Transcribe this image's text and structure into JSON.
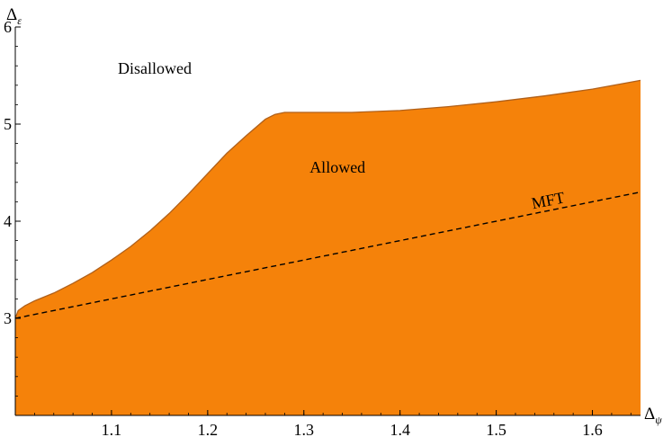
{
  "chart_data": {
    "type": "area",
    "title": "",
    "xlabel": "Δψ",
    "ylabel": "Δε",
    "xlabel_main": "Δ",
    "xlabel_sub": "ψ",
    "ylabel_main": "Δ",
    "ylabel_sub": "ε",
    "xlim": [
      1.0,
      1.65
    ],
    "ylim": [
      2.0,
      6.0
    ],
    "x_ticks": [
      1.1,
      1.2,
      1.3,
      1.4,
      1.5,
      1.6
    ],
    "x_tick_labels": [
      "1.1",
      "1.2",
      "1.3",
      "1.4",
      "1.5",
      "1.6"
    ],
    "y_ticks": [
      3,
      4,
      5,
      6
    ],
    "y_tick_labels": [
      "3",
      "4",
      "5",
      "6"
    ],
    "grid": false,
    "fill_color": "#F5820A",
    "edge_color": "#B0601A",
    "series": [
      {
        "kind": "boundary",
        "x": [
          1.0,
          1.003,
          1.01,
          1.02,
          1.04,
          1.06,
          1.08,
          1.1,
          1.12,
          1.14,
          1.16,
          1.18,
          1.2,
          1.22,
          1.24,
          1.26,
          1.27,
          1.28,
          1.3,
          1.35,
          1.4,
          1.45,
          1.5,
          1.55,
          1.6,
          1.65
        ],
        "y": [
          3.0,
          3.08,
          3.13,
          3.18,
          3.26,
          3.36,
          3.47,
          3.6,
          3.74,
          3.9,
          4.08,
          4.28,
          4.49,
          4.7,
          4.88,
          5.05,
          5.1,
          5.12,
          5.12,
          5.12,
          5.14,
          5.18,
          5.23,
          5.29,
          5.36,
          5.45
        ]
      },
      {
        "name": "MFT",
        "kind": "dashed-line",
        "x": [
          1.0,
          1.65
        ],
        "y": [
          3.0,
          4.3
        ]
      }
    ],
    "annotations": [
      {
        "text": "Disallowed",
        "x": 1.145,
        "y": 5.52
      },
      {
        "text": "Allowed",
        "x": 1.335,
        "y": 4.5
      },
      {
        "text": "MFT",
        "x": 1.555,
        "y": 4.16
      }
    ]
  }
}
